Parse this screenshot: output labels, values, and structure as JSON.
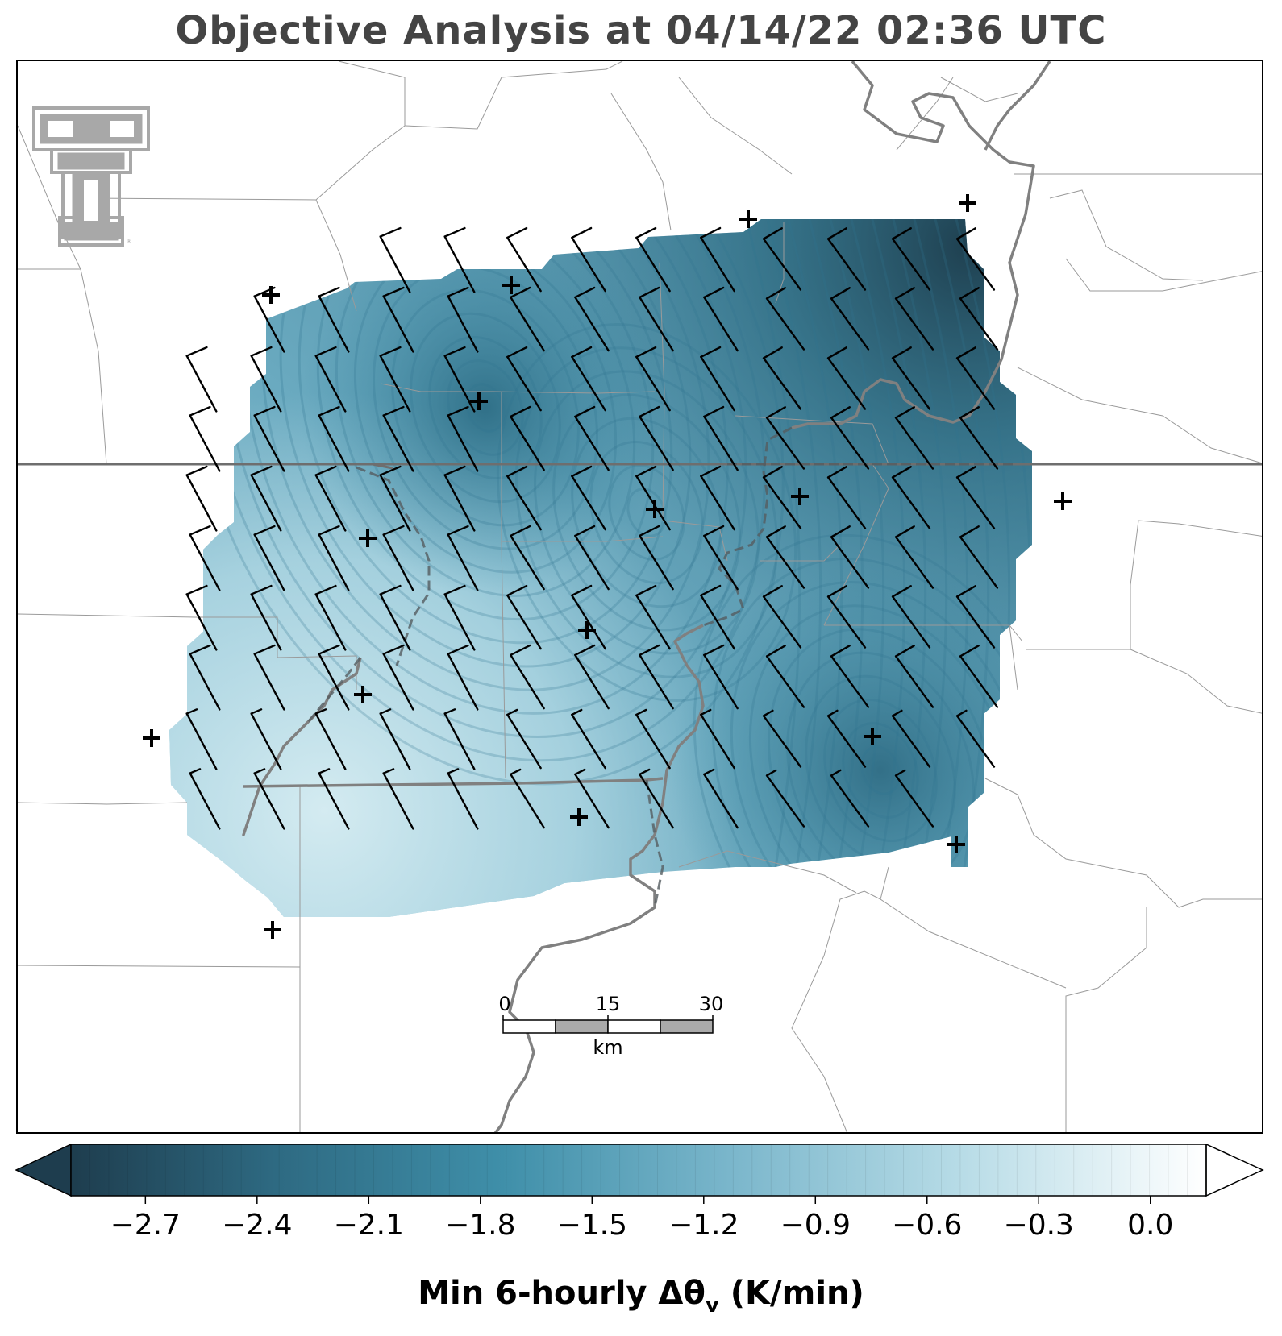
{
  "title": "Objective Analysis at 04/14/22 02:36 UTC",
  "colorbar": {
    "label": "Min 6-hourly Δθ",
    "label_sub": "v",
    "label_units": " (K/min)",
    "ticks": [
      "−2.7",
      "−2.4",
      "−2.1",
      "−1.8",
      "−1.5",
      "−1.2",
      "−0.9",
      "−0.6",
      "−0.3",
      "0.0"
    ],
    "min": -2.9,
    "max": 0.15,
    "colormap": [
      "#1e3d4e",
      "#2e6a82",
      "#3f8fa9",
      "#7ab6cb",
      "#b6dbe6",
      "#e4f2f6",
      "#ffffff"
    ]
  },
  "scale_bar": {
    "labels": [
      "0",
      "15",
      "30"
    ],
    "unit": "km"
  },
  "logo": "texas-tech-double-t-logo",
  "colors": {
    "state_border": "#6e6e6e",
    "county_border": "#9a9a9a",
    "river": "#808080",
    "barb": "#000000",
    "station": "#000000"
  }
}
